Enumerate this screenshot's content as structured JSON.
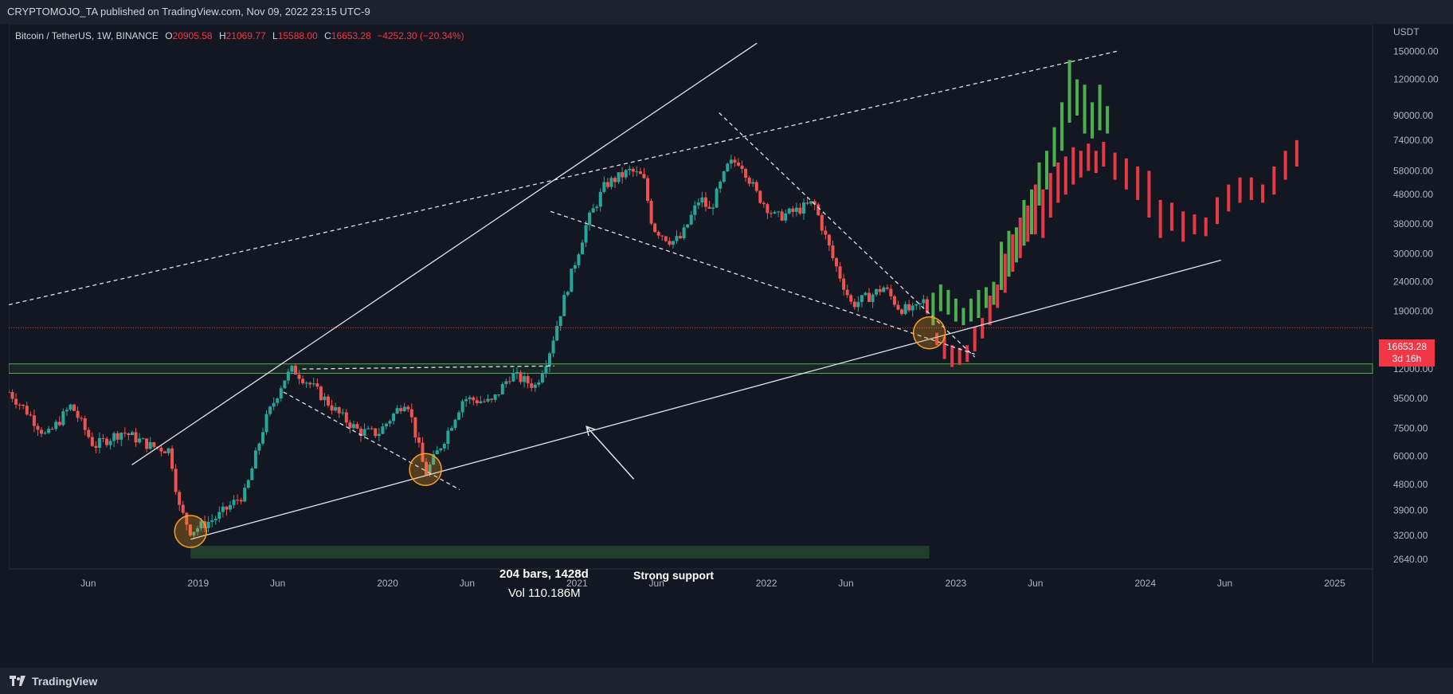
{
  "header": {
    "publisher_line": "CRYPTOMOJO_TA published on TradingView.com, Nov 09, 2022 23:15 UTC-9"
  },
  "legend": {
    "symbol": "Bitcoin / TetherUS, 1W, BINANCE",
    "open_label": "O",
    "open": "20905.58",
    "high_label": "H",
    "high": "21069.77",
    "low_label": "L",
    "low": "15588.00",
    "close_label": "C",
    "close": "16653.28",
    "change": "−4252.30 (−20.34%)"
  },
  "price_tag": {
    "price": "16653.28",
    "countdown": "3d 16h"
  },
  "annotations": {
    "measure_line1": "204 bars, 1428d",
    "measure_line2": "Vol 110.186M",
    "support_label": "Strong support"
  },
  "footer": {
    "brand": "TradingView"
  },
  "colors": {
    "background": "#131722",
    "bull": "#26a69a",
    "bear": "#ef5350",
    "projection_green": "#4caf50",
    "projection_red": "#e53948",
    "support_zone": "#4caf50",
    "circle": "#f7a21b"
  },
  "chart_data": {
    "type": "candlestick",
    "symbol": "Bitcoin / TetherUS",
    "interval": "1W",
    "exchange": "BINANCE",
    "y_axis_unit": "USDT",
    "y_scale": "log",
    "y_ticks": [
      2640,
      3200,
      3900,
      4800,
      6000,
      7500,
      9500,
      12000,
      19000,
      24000,
      30000,
      38000,
      48000,
      58000,
      74000,
      90000,
      120000,
      150000
    ],
    "x_ticks": [
      {
        "label": "Jun",
        "t": 2018.42
      },
      {
        "label": "2019",
        "t": 2019.0
      },
      {
        "label": "Jun",
        "t": 2019.42
      },
      {
        "label": "2020",
        "t": 2020.0
      },
      {
        "label": "Jun",
        "t": 2020.42
      },
      {
        "label": "2021",
        "t": 2021.0
      },
      {
        "label": "Jun",
        "t": 2021.42
      },
      {
        "label": "2022",
        "t": 2022.0
      },
      {
        "label": "Jun",
        "t": 2022.42
      },
      {
        "label": "2023",
        "t": 2023.0
      },
      {
        "label": "Jun",
        "t": 2023.42
      },
      {
        "label": "2024",
        "t": 2024.0
      },
      {
        "label": "Jun",
        "t": 2024.42
      },
      {
        "label": "2025",
        "t": 2025.0
      }
    ],
    "x_range": [
      2018.0,
      2025.2
    ],
    "y_range": [
      2450,
      175000
    ],
    "anchors": [
      [
        2018.0,
        10000
      ],
      [
        2018.1,
        8500
      ],
      [
        2018.2,
        7000
      ],
      [
        2018.33,
        9000
      ],
      [
        2018.45,
        6500
      ],
      [
        2018.6,
        7300
      ],
      [
        2018.75,
        6500
      ],
      [
        2018.85,
        6300
      ],
      [
        2018.9,
        4000
      ],
      [
        2018.96,
        3300
      ],
      [
        2019.1,
        3700
      ],
      [
        2019.25,
        4500
      ],
      [
        2019.35,
        7800
      ],
      [
        2019.45,
        11000
      ],
      [
        2019.5,
        12000
      ],
      [
        2019.6,
        10500
      ],
      [
        2019.75,
        8300
      ],
      [
        2019.85,
        7300
      ],
      [
        2019.95,
        7200
      ],
      [
        2020.1,
        9500
      ],
      [
        2020.2,
        5200
      ],
      [
        2020.3,
        6900
      ],
      [
        2020.4,
        9500
      ],
      [
        2020.55,
        9200
      ],
      [
        2020.65,
        11500
      ],
      [
        2020.78,
        10500
      ],
      [
        2020.85,
        13500
      ],
      [
        2020.95,
        23000
      ],
      [
        2021.05,
        38000
      ],
      [
        2021.15,
        52000
      ],
      [
        2021.28,
        58000
      ],
      [
        2021.35,
        55000
      ],
      [
        2021.4,
        37000
      ],
      [
        2021.5,
        33000
      ],
      [
        2021.55,
        34000
      ],
      [
        2021.65,
        47000
      ],
      [
        2021.7,
        42000
      ],
      [
        2021.8,
        61000
      ],
      [
        2021.86,
        63000
      ],
      [
        2021.95,
        48000
      ],
      [
        2022.05,
        40000
      ],
      [
        2022.15,
        42000
      ],
      [
        2022.25,
        45000
      ],
      [
        2022.35,
        29000
      ],
      [
        2022.45,
        20000
      ],
      [
        2022.55,
        21500
      ],
      [
        2022.62,
        23000
      ],
      [
        2022.7,
        19500
      ],
      [
        2022.78,
        19000
      ],
      [
        2022.84,
        20900
      ],
      [
        2022.86,
        16653
      ]
    ],
    "current_price": 16653.28,
    "projection_green_bars": [
      [
        2022.88,
        17000,
        22000
      ],
      [
        2022.92,
        19000,
        23500
      ],
      [
        2022.96,
        18500,
        22500
      ],
      [
        2023.0,
        17500,
        21000
      ],
      [
        2023.04,
        17000,
        19500
      ],
      [
        2023.08,
        17500,
        21000
      ],
      [
        2023.12,
        18000,
        22500
      ],
      [
        2023.16,
        19500,
        23000
      ],
      [
        2023.2,
        20000,
        24000
      ],
      [
        2023.24,
        22500,
        33000
      ],
      [
        2023.28,
        25000,
        36000
      ],
      [
        2023.32,
        28000,
        37000
      ],
      [
        2023.36,
        32000,
        46000
      ],
      [
        2023.4,
        35000,
        50000
      ],
      [
        2023.44,
        44000,
        62000
      ],
      [
        2023.48,
        50000,
        68000
      ],
      [
        2023.52,
        60000,
        82000
      ],
      [
        2023.56,
        68000,
        100000
      ],
      [
        2023.6,
        85000,
        140000
      ],
      [
        2023.64,
        90000,
        120000
      ],
      [
        2023.68,
        78000,
        115000
      ],
      [
        2023.72,
        75000,
        100000
      ],
      [
        2023.76,
        80000,
        115000
      ],
      [
        2023.8,
        78000,
        97000
      ]
    ],
    "projection_red_bars": [
      [
        2022.9,
        14500,
        16000
      ],
      [
        2022.94,
        13000,
        15500
      ],
      [
        2022.98,
        12200,
        14500
      ],
      [
        2023.02,
        12400,
        14200
      ],
      [
        2023.06,
        12700,
        14500
      ],
      [
        2023.1,
        13800,
        16800
      ],
      [
        2023.14,
        15300,
        18000
      ],
      [
        2023.18,
        17000,
        21500
      ],
      [
        2023.22,
        19500,
        23500
      ],
      [
        2023.26,
        22000,
        30000
      ],
      [
        2023.3,
        26000,
        35000
      ],
      [
        2023.34,
        29000,
        40000
      ],
      [
        2023.38,
        33000,
        44000
      ],
      [
        2023.42,
        35000,
        52000
      ],
      [
        2023.46,
        34000,
        50000
      ],
      [
        2023.5,
        40000,
        57000
      ],
      [
        2023.54,
        45000,
        62000
      ],
      [
        2023.58,
        48000,
        65000
      ],
      [
        2023.62,
        52000,
        70000
      ],
      [
        2023.66,
        55000,
        68000
      ],
      [
        2023.7,
        58000,
        72000
      ],
      [
        2023.74,
        57000,
        68000
      ],
      [
        2023.78,
        60000,
        73000
      ],
      [
        2023.84,
        54000,
        67000
      ],
      [
        2023.9,
        50000,
        64000
      ],
      [
        2023.96,
        46000,
        60000
      ],
      [
        2024.02,
        40000,
        58000
      ],
      [
        2024.08,
        34000,
        46000
      ],
      [
        2024.14,
        36000,
        45000
      ],
      [
        2024.2,
        33000,
        42000
      ],
      [
        2024.26,
        35000,
        41000
      ],
      [
        2024.32,
        34500,
        40000
      ],
      [
        2024.38,
        38000,
        47000
      ],
      [
        2024.44,
        42000,
        52000
      ],
      [
        2024.5,
        45000,
        55000
      ],
      [
        2024.56,
        46000,
        55000
      ],
      [
        2024.62,
        45000,
        52000
      ],
      [
        2024.68,
        48000,
        60000
      ],
      [
        2024.74,
        54000,
        68000
      ],
      [
        2024.8,
        60000,
        74000
      ]
    ],
    "support_zone": [
      11600,
      12500
    ],
    "measure_bar": {
      "from": 2018.96,
      "to": 2022.86,
      "price": 2800
    },
    "circles": [
      {
        "t": 2018.96,
        "price": 3300
      },
      {
        "t": 2020.2,
        "price": 5400
      },
      {
        "t": 2022.86,
        "price": 16000
      }
    ],
    "lines": {
      "solid": [
        [
          [
            2018.65,
            5600
          ],
          [
            2021.95,
            160000
          ]
        ],
        [
          [
            2018.96,
            3100
          ],
          [
            2024.4,
            28500
          ]
        ]
      ],
      "dashed": [
        [
          [
            2018.0,
            20000
          ],
          [
            2023.85,
            150000
          ]
        ],
        [
          [
            2019.55,
            12000
          ],
          [
            2020.88,
            12300
          ]
        ],
        [
          [
            2019.45,
            10000
          ],
          [
            2020.38,
            4600
          ]
        ],
        [
          [
            2020.86,
            42000
          ],
          [
            2023.1,
            13500
          ]
        ],
        [
          [
            2021.75,
            92000
          ],
          [
            2023.1,
            13200
          ]
        ]
      ]
    },
    "arrow": {
      "from": [
        2021.3,
        5000
      ],
      "to": [
        2021.05,
        7600
      ]
    }
  }
}
